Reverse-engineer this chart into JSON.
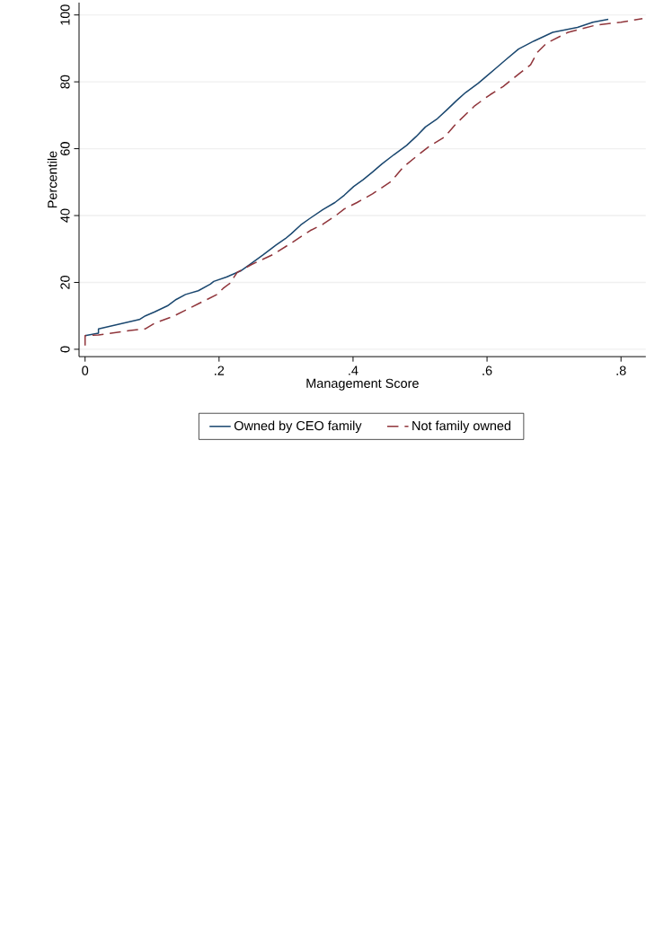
{
  "chart_data": {
    "type": "line",
    "xlabel": "Management Score",
    "ylabel": "Percentile",
    "xlim": [
      -0.009,
      0.837
    ],
    "ylim": [
      -2.2,
      103.7
    ],
    "xticks": [
      {
        "value": 0,
        "label": "0"
      },
      {
        "value": 0.2,
        "label": ".2"
      },
      {
        "value": 0.4,
        "label": ".4"
      },
      {
        "value": 0.6,
        "label": ".6"
      },
      {
        "value": 0.8,
        "label": ".8"
      }
    ],
    "yticks": [
      0,
      20,
      40,
      60,
      80,
      100
    ],
    "grid": "y",
    "legend": "bottom",
    "series": [
      {
        "name": "Owned by CEO family",
        "color": "#1a476f",
        "line_style": "solid",
        "x": [
          0,
          0.02,
          0.02,
          0.081,
          0.09,
          0.104,
          0.123,
          0.136,
          0.15,
          0.169,
          0.187,
          0.192,
          0.211,
          0.232,
          0.248,
          0.266,
          0.285,
          0.299,
          0.308,
          0.322,
          0.336,
          0.355,
          0.373,
          0.387,
          0.401,
          0.415,
          0.429,
          0.443,
          0.461,
          0.48,
          0.494,
          0.508,
          0.526,
          0.54,
          0.554,
          0.568,
          0.587,
          0.6,
          0.614,
          0.628,
          0.647,
          0.67,
          0.698,
          0.735,
          0.758,
          0.781
        ],
        "values": [
          4.1,
          4.8,
          6.1,
          8.9,
          10,
          11.2,
          13,
          14.9,
          16.4,
          17.5,
          19.5,
          20.3,
          21.6,
          23.4,
          25.7,
          28.3,
          31.2,
          33.1,
          34.6,
          37.2,
          39.2,
          41.8,
          43.9,
          46.1,
          48.7,
          50.7,
          53,
          55.4,
          58.2,
          61,
          63.6,
          66.5,
          69,
          71.6,
          74.3,
          76.8,
          79.6,
          81.8,
          84.2,
          86.6,
          89.8,
          92.2,
          94.8,
          96.3,
          97.8,
          98.7
        ]
      },
      {
        "name": "Not family owned",
        "color": "#90353b",
        "line_style": "dashed",
        "x": [
          0,
          0,
          0.02,
          0.067,
          0.09,
          0.104,
          0.132,
          0.15,
          0.169,
          0.197,
          0.206,
          0.216,
          0.227,
          0.248,
          0.28,
          0.308,
          0.336,
          0.355,
          0.373,
          0.387,
          0.406,
          0.429,
          0.457,
          0.475,
          0.494,
          0.513,
          0.536,
          0.554,
          0.582,
          0.605,
          0.624,
          0.647,
          0.665,
          0.675,
          0.689,
          0.721,
          0.763,
          0.8,
          0.832
        ],
        "values": [
          1.1,
          4.1,
          4.3,
          5.6,
          6.1,
          7.8,
          9.9,
          11.7,
          13.6,
          16.4,
          18.2,
          19.7,
          23,
          25.3,
          28.3,
          31.8,
          35.5,
          37.4,
          39.8,
          42,
          43.9,
          46.5,
          50.2,
          54.5,
          57.6,
          60.6,
          63.4,
          67.5,
          72.9,
          76.2,
          78.6,
          82.3,
          85.1,
          88.8,
          91.6,
          94.8,
          97,
          97.8,
          98.9
        ]
      }
    ]
  }
}
